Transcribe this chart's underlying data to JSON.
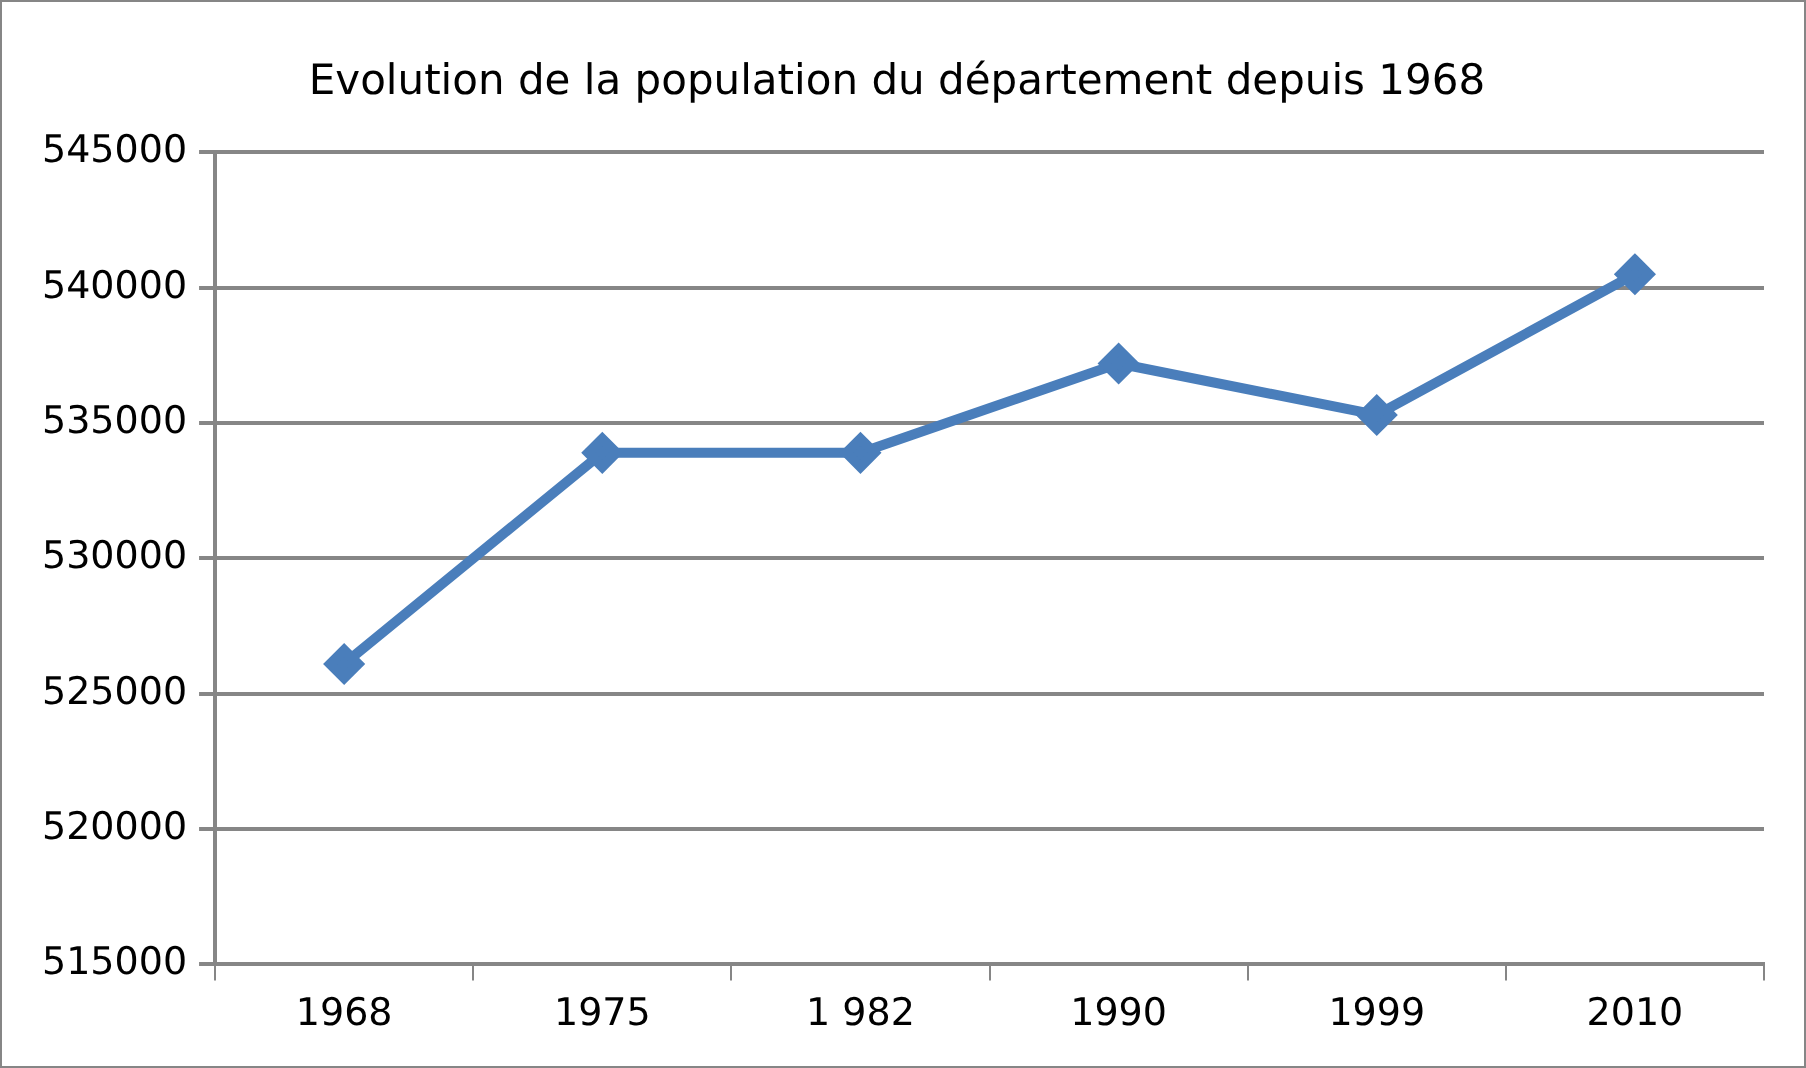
{
  "chart_data": {
    "type": "line",
    "title": "Evolution de la population du département depuis 1968",
    "categories": [
      "1968",
      "1975",
      "1 982",
      "1990",
      "1999",
      "2010"
    ],
    "series": [
      {
        "color": "#4a7ebb",
        "values": [
          526100,
          533900,
          533900,
          537200,
          535300,
          540500
        ]
      }
    ],
    "ylim": [
      515000,
      545000
    ],
    "yticks": [
      515000,
      520000,
      525000,
      530000,
      535000,
      540000,
      545000
    ],
    "grid": "y",
    "legend": false,
    "marker": "diamond",
    "line_style": "solid"
  }
}
